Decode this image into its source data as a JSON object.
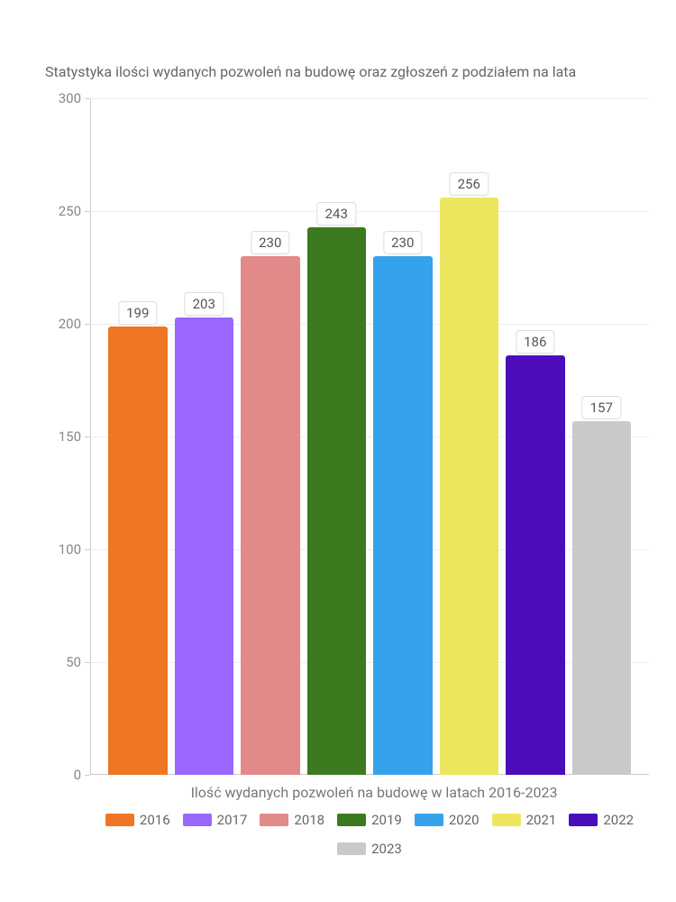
{
  "chart": {
    "type": "bar",
    "title": "Statystyka ilości wydanych pozwoleń na budowę oraz zgłoszeń z podziałem na lata",
    "xlabel": "Ilość wydanych pozwoleń na budowę w latach 2016-2023",
    "ylim": [
      0,
      300
    ],
    "ytick_step": 50,
    "yticks": [
      0,
      50,
      100,
      150,
      200,
      250,
      300
    ],
    "background_color": "#ffffff",
    "grid_color": "#eeeeee",
    "axis_color": "#cccccc",
    "text_color": "#666666",
    "title_fontsize": 16,
    "label_fontsize": 15,
    "bar_gap": 8,
    "series": [
      {
        "year": "2016",
        "value": 199,
        "color": "#ee7624"
      },
      {
        "year": "2017",
        "value": 203,
        "color": "#9966ff"
      },
      {
        "year": "2018",
        "value": 230,
        "color": "#e28a8a"
      },
      {
        "year": "2019",
        "value": 243,
        "color": "#3d7a1f"
      },
      {
        "year": "2020",
        "value": 230,
        "color": "#36a2eb"
      },
      {
        "year": "2021",
        "value": 256,
        "color": "#ece75f"
      },
      {
        "year": "2022",
        "value": 186,
        "color": "#4b0dba"
      },
      {
        "year": "2023",
        "value": 157,
        "color": "#c9c9c9"
      }
    ]
  }
}
